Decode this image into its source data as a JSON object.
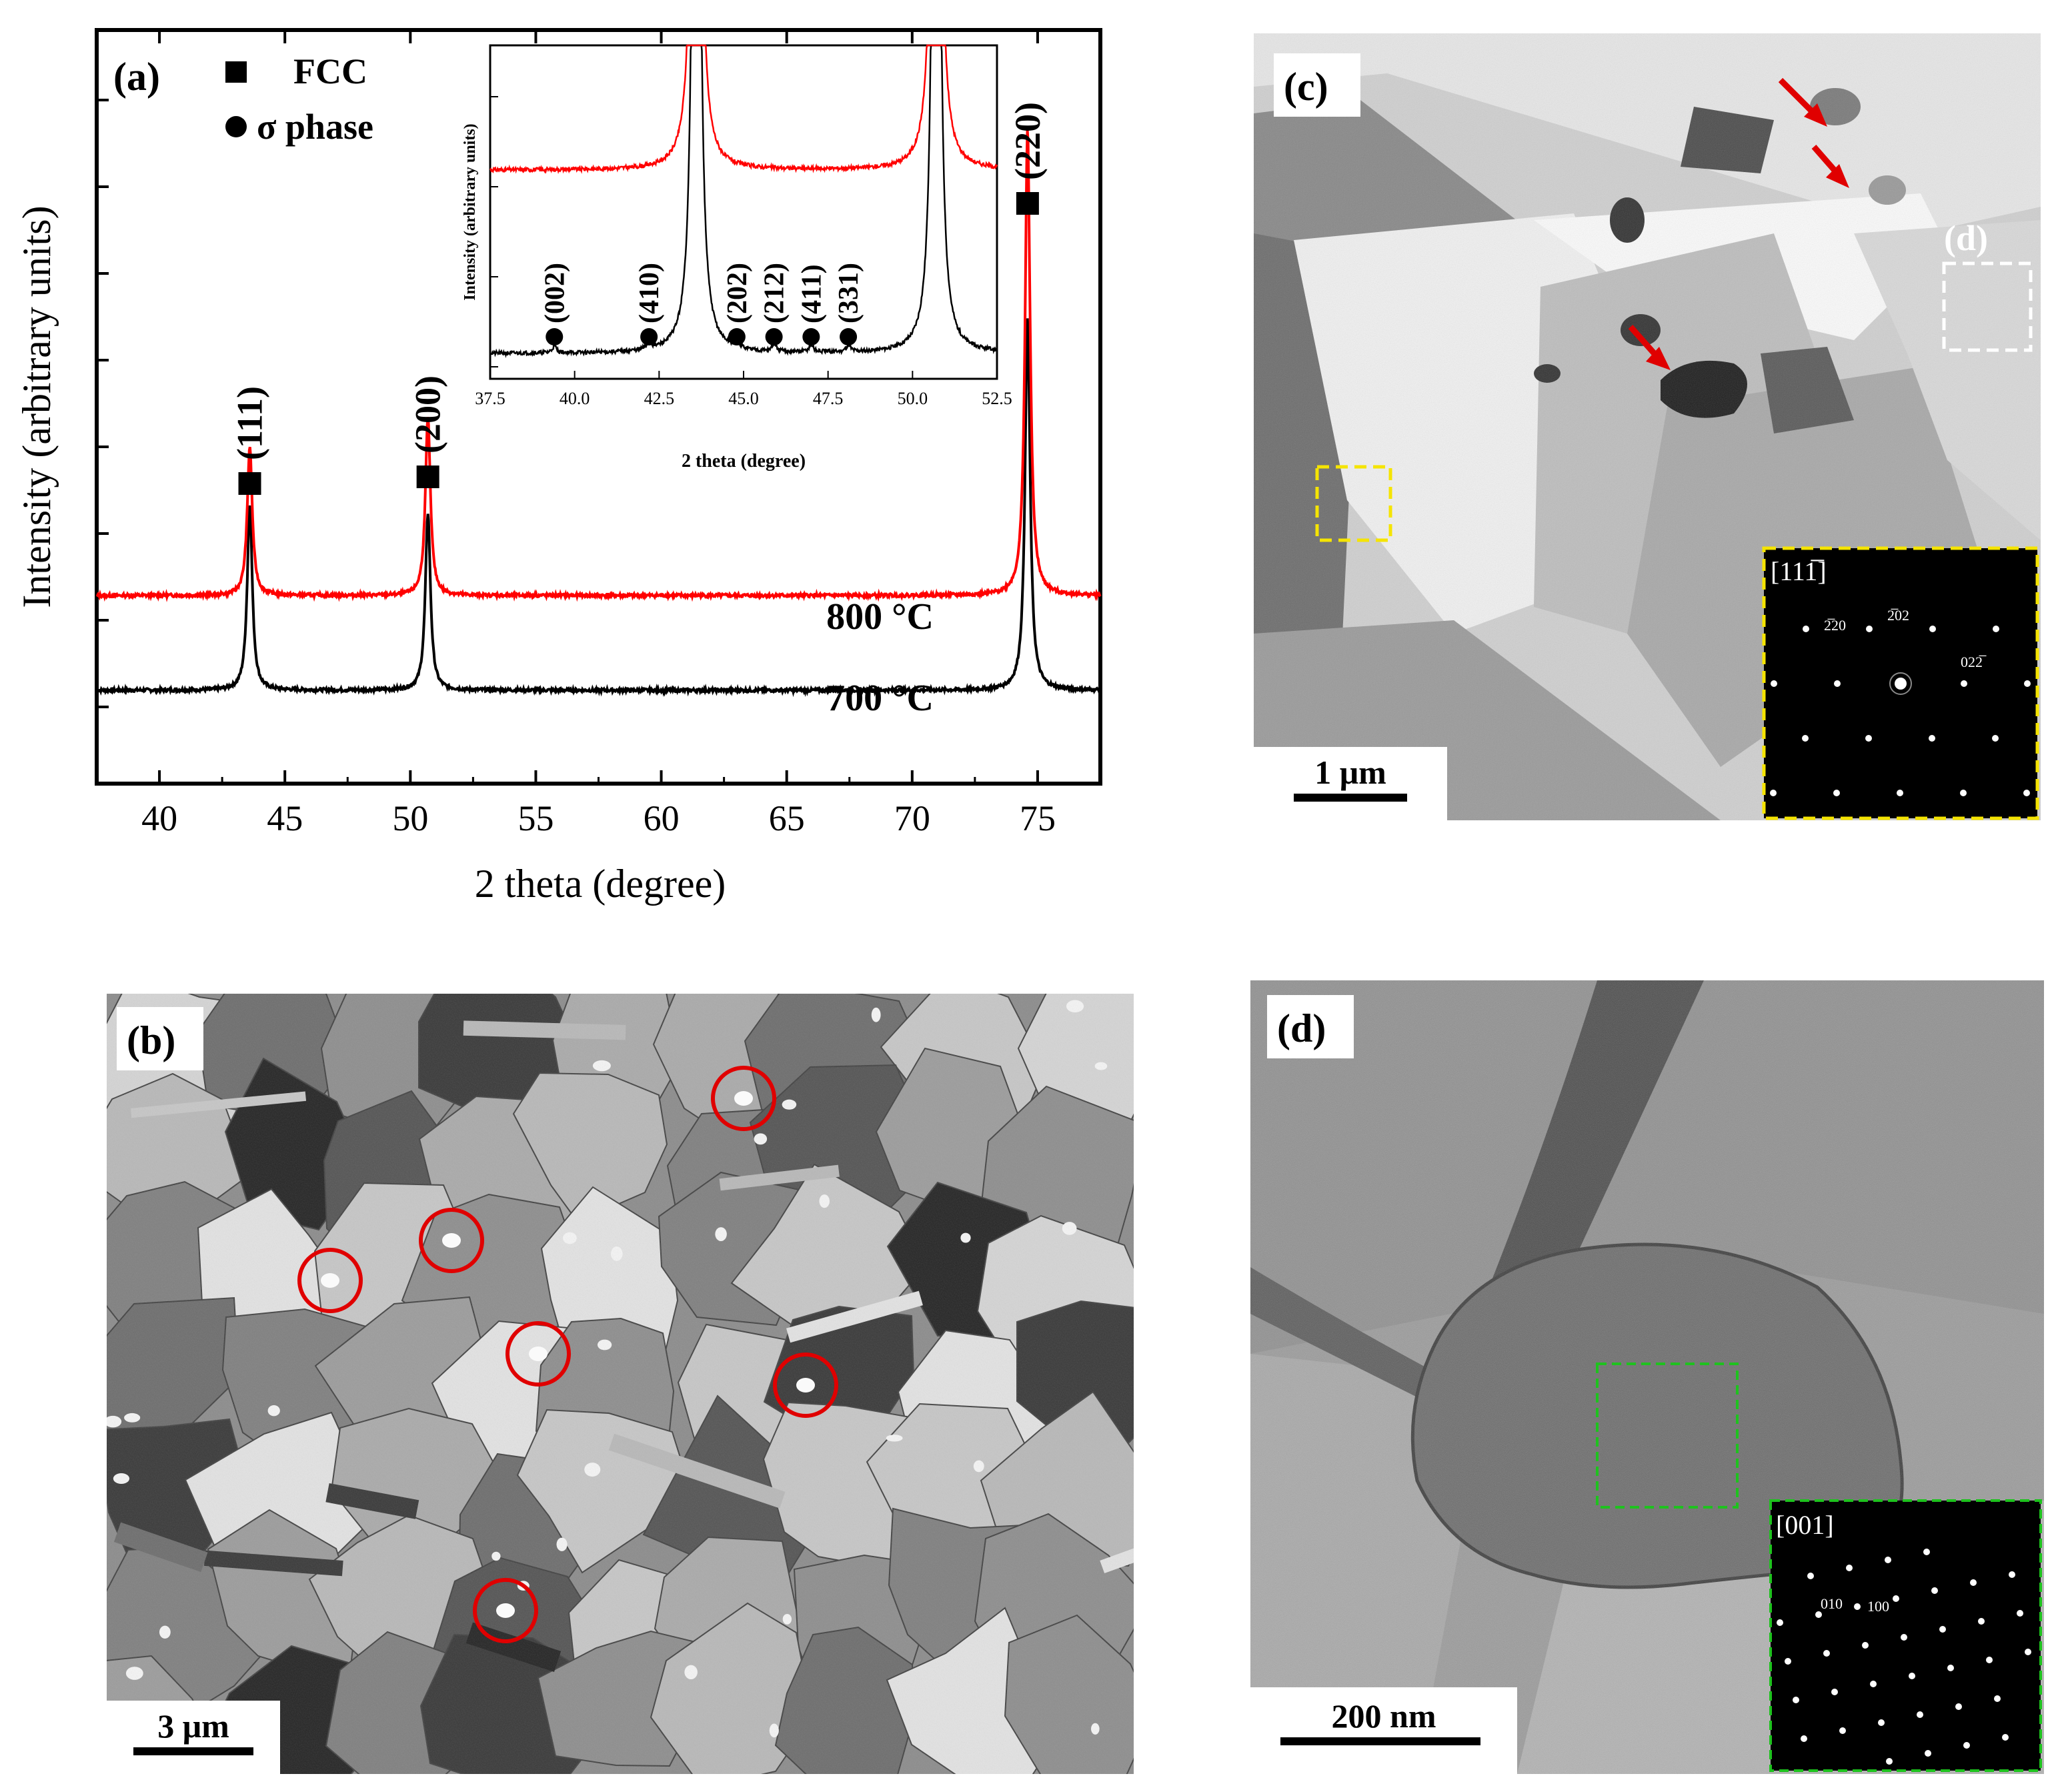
{
  "panel_a": {
    "label": "(a)",
    "legend": [
      {
        "marker": "square",
        "text": "FCC"
      },
      {
        "marker": "circle",
        "text": "σ phase"
      }
    ],
    "chart_data": {
      "type": "line",
      "xlabel": "2 theta (degree)",
      "ylabel": "Intensity (arbitrary units)",
      "xlim": [
        37.5,
        77.5
      ],
      "x_ticks": [
        "40",
        "45",
        "50",
        "55",
        "60",
        "65",
        "70",
        "75"
      ],
      "series": [
        {
          "name": "700 °C",
          "color": "#000000",
          "peaks": [
            {
              "x": 43.6,
              "height": 1.0
            },
            {
              "x": 50.7,
              "height": 0.95
            },
            {
              "x": 74.6,
              "height": 2.0
            }
          ]
        },
        {
          "name": "800 °C",
          "color": "#ff0000",
          "peaks": [
            {
              "x": 43.6,
              "height": 0.8
            },
            {
              "x": 50.7,
              "height": 0.95
            },
            {
              "x": 74.6,
              "height": 2.5
            }
          ]
        }
      ],
      "peak_labels": [
        {
          "text": "(111)",
          "x": 43.6
        },
        {
          "text": "(200)",
          "x": 50.7
        },
        {
          "text": "(220)",
          "x": 74.6
        }
      ]
    },
    "inset": {
      "chart_data": {
        "type": "line",
        "xlabel": "2 theta (degree)",
        "ylabel": "Intensity (arbitrary units)",
        "xlim": [
          37.5,
          52.5
        ],
        "x_ticks": [
          "37.5",
          "40.0",
          "42.5",
          "45.0",
          "47.5",
          "50.0",
          "52.5"
        ],
        "sigma_peaks": [
          {
            "text": "(002)",
            "x": 39.4
          },
          {
            "text": "(410)",
            "x": 42.2
          },
          {
            "text": "(202)",
            "x": 44.8
          },
          {
            "text": "(212)",
            "x": 45.9
          },
          {
            "text": "(411)",
            "x": 47.0
          },
          {
            "text": "(331)",
            "x": 48.1
          }
        ]
      }
    }
  },
  "panel_b": {
    "label": "(b)",
    "scale_bar": "3 μm"
  },
  "panel_c": {
    "label": "(c)",
    "region_label": "(d)",
    "scale_bar": "1 μm",
    "saed": {
      "zone_axis": "[111̅]",
      "spots": [
        "2̅20",
        "2̅02",
        "022̅"
      ]
    }
  },
  "panel_d": {
    "label": "(d)",
    "scale_bar": "200 nm",
    "saed": {
      "zone_axis": "[001]",
      "spots": [
        "010",
        "100"
      ]
    }
  }
}
